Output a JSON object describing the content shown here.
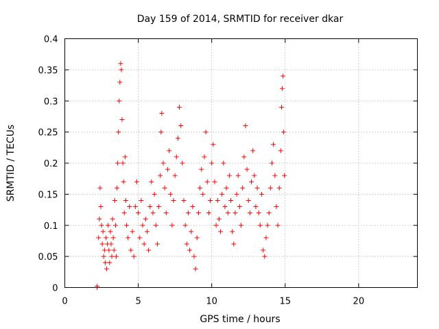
{
  "chart_data": {
    "type": "scatter",
    "title": "Day 159 of 2014, SRMTID for receiver dkar",
    "xlabel": "GPS time / hours",
    "ylabel": "SRMTID / TECUs",
    "xlim": [
      0,
      24
    ],
    "ylim": [
      0,
      0.4
    ],
    "xticks": [
      0,
      5,
      10,
      15,
      20
    ],
    "yticks": [
      0,
      0.05,
      0.1,
      0.15,
      0.2,
      0.25,
      0.3,
      0.35,
      0.4
    ],
    "xtick_labels": [
      "0",
      "5",
      "10",
      "15",
      "20"
    ],
    "ytick_labels": [
      "0",
      "0.05",
      "0.1",
      "0.15",
      "0.2",
      "0.25",
      "0.3",
      "0.35",
      "0.4"
    ],
    "grid": true,
    "marker": "+",
    "color": "#ff0000",
    "series": [
      {
        "name": "SRMTID",
        "points": [
          [
            2.2,
            0.0
          ],
          [
            2.2,
            0.002
          ],
          [
            2.3,
            0.08
          ],
          [
            2.35,
            0.11
          ],
          [
            2.4,
            0.16
          ],
          [
            2.45,
            0.13
          ],
          [
            2.5,
            0.1
          ],
          [
            2.55,
            0.07
          ],
          [
            2.6,
            0.09
          ],
          [
            2.65,
            0.05
          ],
          [
            2.7,
            0.06
          ],
          [
            2.75,
            0.04
          ],
          [
            2.8,
            0.08
          ],
          [
            2.85,
            0.03
          ],
          [
            2.9,
            0.07
          ],
          [
            2.95,
            0.1
          ],
          [
            3.0,
            0.06
          ],
          [
            3.05,
            0.04
          ],
          [
            3.1,
            0.09
          ],
          [
            3.15,
            0.07
          ],
          [
            3.2,
            0.05
          ],
          [
            3.25,
            0.11
          ],
          [
            3.3,
            0.08
          ],
          [
            3.35,
            0.06
          ],
          [
            3.4,
            0.14
          ],
          [
            3.45,
            0.1
          ],
          [
            3.5,
            0.05
          ],
          [
            3.55,
            0.16
          ],
          [
            3.6,
            0.2
          ],
          [
            3.65,
            0.25
          ],
          [
            3.7,
            0.3
          ],
          [
            3.75,
            0.33
          ],
          [
            3.8,
            0.36
          ],
          [
            3.85,
            0.35
          ],
          [
            3.9,
            0.27
          ],
          [
            3.95,
            0.2
          ],
          [
            4.0,
            0.17
          ],
          [
            4.05,
            0.12
          ],
          [
            4.1,
            0.21
          ],
          [
            4.15,
            0.14
          ],
          [
            4.2,
            0.1
          ],
          [
            4.3,
            0.08
          ],
          [
            4.4,
            0.13
          ],
          [
            4.5,
            0.06
          ],
          [
            4.6,
            0.09
          ],
          [
            4.7,
            0.05
          ],
          [
            4.8,
            0.13
          ],
          [
            4.9,
            0.17
          ],
          [
            5.0,
            0.12
          ],
          [
            5.1,
            0.08
          ],
          [
            5.2,
            0.14
          ],
          [
            5.3,
            0.1
          ],
          [
            5.4,
            0.07
          ],
          [
            5.5,
            0.11
          ],
          [
            5.6,
            0.09
          ],
          [
            5.7,
            0.06
          ],
          [
            5.8,
            0.13
          ],
          [
            5.9,
            0.17
          ],
          [
            6.0,
            0.12
          ],
          [
            6.1,
            0.15
          ],
          [
            6.2,
            0.1
          ],
          [
            6.3,
            0.07
          ],
          [
            6.4,
            0.13
          ],
          [
            6.5,
            0.18
          ],
          [
            6.55,
            0.25
          ],
          [
            6.6,
            0.28
          ],
          [
            6.7,
            0.2
          ],
          [
            6.8,
            0.16
          ],
          [
            6.9,
            0.12
          ],
          [
            7.0,
            0.19
          ],
          [
            7.1,
            0.22
          ],
          [
            7.2,
            0.15
          ],
          [
            7.3,
            0.1
          ],
          [
            7.4,
            0.14
          ],
          [
            7.5,
            0.18
          ],
          [
            7.6,
            0.21
          ],
          [
            7.7,
            0.24
          ],
          [
            7.8,
            0.29
          ],
          [
            7.9,
            0.26
          ],
          [
            8.0,
            0.2
          ],
          [
            8.1,
            0.14
          ],
          [
            8.2,
            0.1
          ],
          [
            8.3,
            0.07
          ],
          [
            8.4,
            0.12
          ],
          [
            8.5,
            0.06
          ],
          [
            8.6,
            0.09
          ],
          [
            8.7,
            0.13
          ],
          [
            8.8,
            0.05
          ],
          [
            8.9,
            0.03
          ],
          [
            9.0,
            0.08
          ],
          [
            9.1,
            0.12
          ],
          [
            9.2,
            0.16
          ],
          [
            9.3,
            0.19
          ],
          [
            9.4,
            0.15
          ],
          [
            9.5,
            0.21
          ],
          [
            9.6,
            0.25
          ],
          [
            9.7,
            0.17
          ],
          [
            9.8,
            0.12
          ],
          [
            9.9,
            0.14
          ],
          [
            10.0,
            0.2
          ],
          [
            10.1,
            0.23
          ],
          [
            10.2,
            0.17
          ],
          [
            10.3,
            0.1
          ],
          [
            10.4,
            0.14
          ],
          [
            10.5,
            0.11
          ],
          [
            10.6,
            0.09
          ],
          [
            10.7,
            0.15
          ],
          [
            10.8,
            0.2
          ],
          [
            10.9,
            0.13
          ],
          [
            11.0,
            0.16
          ],
          [
            11.1,
            0.12
          ],
          [
            11.2,
            0.18
          ],
          [
            11.3,
            0.14
          ],
          [
            11.4,
            0.09
          ],
          [
            11.5,
            0.07
          ],
          [
            11.6,
            0.12
          ],
          [
            11.7,
            0.15
          ],
          [
            11.8,
            0.18
          ],
          [
            11.9,
            0.13
          ],
          [
            12.0,
            0.1
          ],
          [
            12.1,
            0.16
          ],
          [
            12.2,
            0.21
          ],
          [
            12.3,
            0.26
          ],
          [
            12.4,
            0.19
          ],
          [
            12.5,
            0.14
          ],
          [
            12.6,
            0.12
          ],
          [
            12.7,
            0.17
          ],
          [
            12.8,
            0.22
          ],
          [
            12.9,
            0.18
          ],
          [
            13.0,
            0.13
          ],
          [
            13.1,
            0.16
          ],
          [
            13.2,
            0.12
          ],
          [
            13.3,
            0.1
          ],
          [
            13.4,
            0.15
          ],
          [
            13.5,
            0.06
          ],
          [
            13.6,
            0.05
          ],
          [
            13.7,
            0.08
          ],
          [
            13.8,
            0.1
          ],
          [
            13.9,
            0.12
          ],
          [
            14.0,
            0.16
          ],
          [
            14.1,
            0.2
          ],
          [
            14.2,
            0.23
          ],
          [
            14.3,
            0.18
          ],
          [
            14.4,
            0.13
          ],
          [
            14.5,
            0.1
          ],
          [
            14.6,
            0.16
          ],
          [
            14.7,
            0.22
          ],
          [
            14.75,
            0.29
          ],
          [
            14.8,
            0.32
          ],
          [
            14.85,
            0.34
          ],
          [
            14.9,
            0.25
          ],
          [
            14.95,
            0.18
          ]
        ]
      }
    ]
  }
}
